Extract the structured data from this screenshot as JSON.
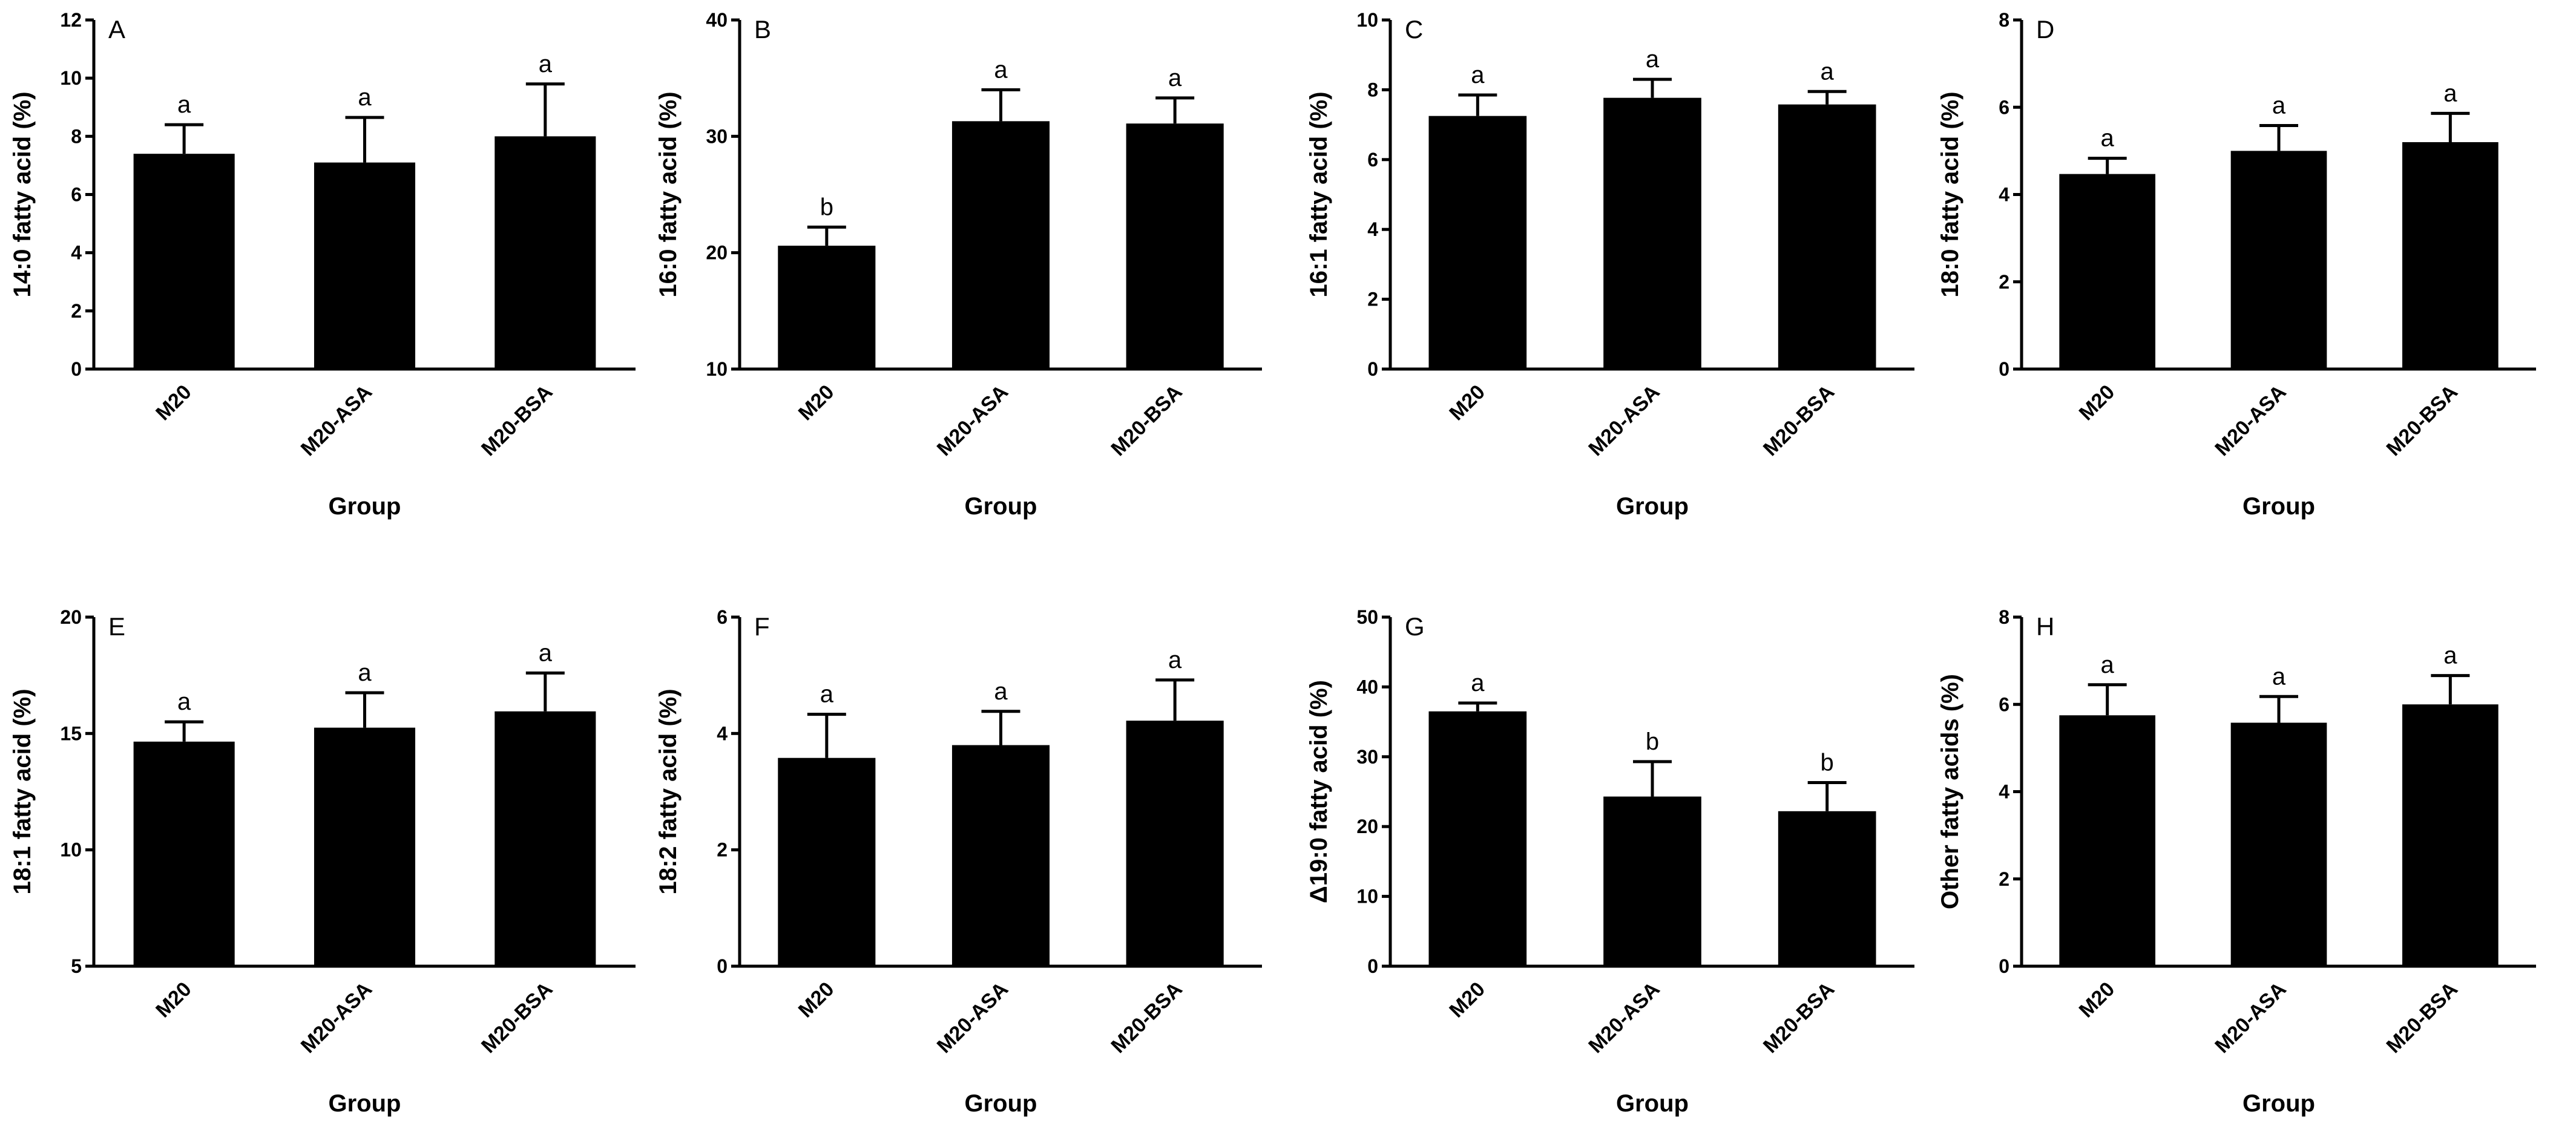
{
  "colors": {
    "bar": "#000000",
    "axis": "#000000",
    "background": "#ffffff"
  },
  "chart_data": [
    {
      "type": "bar",
      "panel": "A",
      "xlabel": "Group",
      "ylabel": "14:0 fatty acid  (%)",
      "categories": [
        "M20",
        "M20-ASA",
        "M20-BSA"
      ],
      "values": [
        7.4,
        7.1,
        8.0
      ],
      "errors": [
        1.0,
        1.55,
        1.8
      ],
      "letters": [
        "a",
        "a",
        "a"
      ],
      "ylim": [
        0,
        12
      ],
      "yticks": [
        0,
        2,
        4,
        6,
        8,
        10,
        12
      ]
    },
    {
      "type": "bar",
      "panel": "B",
      "xlabel": "Group",
      "ylabel": "16:0 fatty acid  (%)",
      "categories": [
        "M20",
        "M20-ASA",
        "M20-BSA"
      ],
      "values": [
        20.6,
        31.3,
        31.1
      ],
      "errors": [
        1.6,
        2.7,
        2.2
      ],
      "letters": [
        "b",
        "a",
        "a"
      ],
      "ylim": [
        10,
        40
      ],
      "yticks": [
        10,
        20,
        30,
        40
      ]
    },
    {
      "type": "bar",
      "panel": "C",
      "xlabel": "Group",
      "ylabel": "16:1 fatty acid (%)",
      "categories": [
        "M20",
        "M20-ASA",
        "M20-BSA"
      ],
      "values": [
        7.25,
        7.77,
        7.58
      ],
      "errors": [
        0.6,
        0.53,
        0.37
      ],
      "letters": [
        "a",
        "a",
        "a"
      ],
      "ylim": [
        0,
        10
      ],
      "yticks": [
        0,
        2,
        4,
        6,
        8,
        10
      ]
    },
    {
      "type": "bar",
      "panel": "D",
      "xlabel": "Group",
      "ylabel": "18:0 fatty acid (%)",
      "categories": [
        "M20",
        "M20-ASA",
        "M20-BSA"
      ],
      "values": [
        4.47,
        5.0,
        5.2
      ],
      "errors": [
        0.36,
        0.58,
        0.66
      ],
      "letters": [
        "a",
        "a",
        "a"
      ],
      "ylim": [
        0,
        8
      ],
      "yticks": [
        0,
        2,
        4,
        6,
        8
      ]
    },
    {
      "type": "bar",
      "panel": "E",
      "xlabel": "Group",
      "ylabel": "18:1 fatty acid (%)",
      "categories": [
        "M20",
        "M20-ASA",
        "M20-BSA"
      ],
      "values": [
        14.65,
        15.25,
        15.95
      ],
      "errors": [
        0.85,
        1.5,
        1.65
      ],
      "letters": [
        "a",
        "a",
        "a"
      ],
      "ylim": [
        5,
        20
      ],
      "yticks": [
        5,
        10,
        15,
        20
      ]
    },
    {
      "type": "bar",
      "panel": "F",
      "xlabel": "Group",
      "ylabel": "18:2 fatty acid (%)",
      "categories": [
        "M20",
        "M20-ASA",
        "M20-BSA"
      ],
      "values": [
        3.58,
        3.8,
        4.22
      ],
      "errors": [
        0.75,
        0.58,
        0.7
      ],
      "letters": [
        "a",
        "a",
        "a"
      ],
      "ylim": [
        0,
        6
      ],
      "yticks": [
        0,
        2,
        4,
        6
      ]
    },
    {
      "type": "bar",
      "panel": "G",
      "xlabel": "Group",
      "ylabel": "Δ19:0 fatty acid (%)",
      "categories": [
        "M20",
        "M20-ASA",
        "M20-BSA"
      ],
      "values": [
        36.5,
        24.3,
        22.2
      ],
      "errors": [
        1.2,
        5.0,
        4.1
      ],
      "letters": [
        "a",
        "b",
        "b"
      ],
      "ylim": [
        0,
        50
      ],
      "yticks": [
        0,
        10,
        20,
        30,
        40,
        50
      ]
    },
    {
      "type": "bar",
      "panel": "H",
      "xlabel": "Group",
      "ylabel": "Other fatty acids (%)",
      "categories": [
        "M20",
        "M20-ASA",
        "M20-BSA"
      ],
      "values": [
        5.75,
        5.58,
        6.0
      ],
      "errors": [
        0.7,
        0.6,
        0.66
      ],
      "letters": [
        "a",
        "a",
        "a"
      ],
      "ylim": [
        0,
        8
      ],
      "yticks": [
        0,
        2,
        4,
        6,
        8
      ]
    }
  ]
}
